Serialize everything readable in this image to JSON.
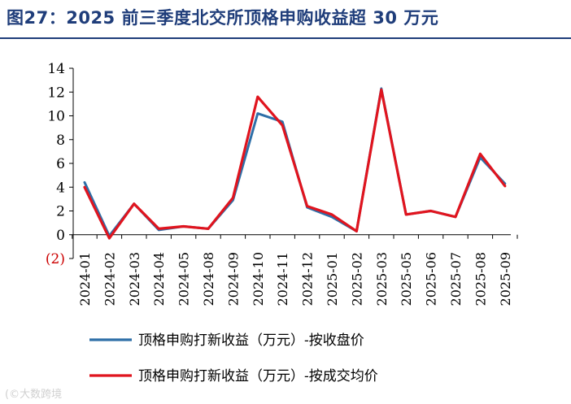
{
  "page": {
    "title": "图27：2025 前三季度北交所顶格申购收益超 30 万元",
    "watermark": "(©大数跨境"
  },
  "chart_data": {
    "type": "line",
    "title": "图27：2025 前三季度北交所顶格申购收益超 30 万元",
    "xlabel": "",
    "ylabel": "",
    "ylim": [
      -2,
      14
    ],
    "yticks": [
      14,
      12,
      10,
      8,
      6,
      4,
      2,
      0,
      -2
    ],
    "ytick_labels": [
      "14",
      "12",
      "10",
      "8",
      "6",
      "4",
      "2",
      "0",
      "(2)"
    ],
    "negative_tick_color": "#cc0000",
    "grid": false,
    "legend_position": "bottom",
    "categories": [
      "2024-01",
      "2024-02",
      "2024-03",
      "2024-04",
      "2024-05",
      "2024-08",
      "2024-09",
      "2024-10",
      "2024-11",
      "2024-12",
      "2025-01",
      "2025-02",
      "2025-03",
      "2025-05",
      "2025-06",
      "2025-07",
      "2025-08",
      "2025-09"
    ],
    "series": [
      {
        "name": "顶格申购打新收益（万元）-按收盘价",
        "color": "#2e6fa8",
        "values": [
          4.4,
          -0.1,
          2.6,
          0.4,
          0.7,
          0.5,
          2.9,
          10.2,
          9.5,
          2.3,
          1.5,
          0.3,
          12.3,
          1.7,
          2.0,
          1.5,
          6.5,
          4.3
        ]
      },
      {
        "name": "顶格申购打新收益（万元）-按成交均价",
        "color": "#e0141e",
        "values": [
          4.0,
          -0.3,
          2.6,
          0.5,
          0.7,
          0.5,
          3.1,
          11.6,
          9.2,
          2.4,
          1.7,
          0.3,
          12.2,
          1.7,
          2.0,
          1.5,
          6.8,
          4.1
        ]
      }
    ]
  }
}
